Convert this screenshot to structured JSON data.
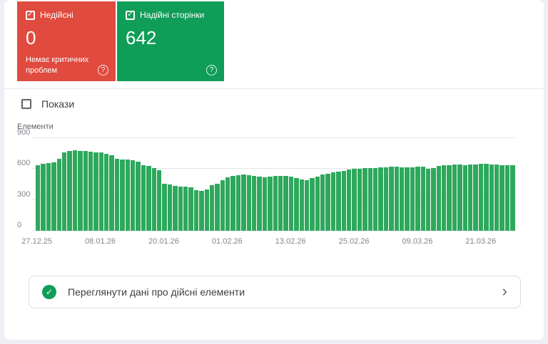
{
  "colors": {
    "invalid_card_bg": "#e04a3f",
    "valid_card_bg": "#0f9d58",
    "bar_green": "#2ea85c",
    "footer_check_green": "#109d58"
  },
  "icons": {
    "check": "✓",
    "help": "?",
    "chevron_right": "›"
  },
  "cards": {
    "invalid": {
      "label": "Недійсні",
      "value": "0",
      "subtext": "Немає критичних проблем",
      "checked": true
    },
    "valid": {
      "label": "Надійні сторінки",
      "value": "642",
      "checked": true
    }
  },
  "impressions_toggle": {
    "label": "Покази",
    "checked": false
  },
  "chart_data": {
    "type": "bar",
    "title": "",
    "ylabel": "Елементи",
    "xlabel": "",
    "ylim": [
      0,
      900
    ],
    "yticks": [
      0,
      300,
      600,
      900
    ],
    "grid": "horizontal",
    "bar_color": "#2ea85c",
    "x_tick_labels": [
      "27.12.25",
      "08.01.26",
      "20.01.26",
      "01.02.26",
      "13.02.26",
      "25.02.26",
      "09.03.26",
      "21.03.26"
    ],
    "x_tick_indices": [
      0,
      12,
      24,
      36,
      48,
      60,
      72,
      84
    ],
    "values": [
      640,
      650,
      655,
      665,
      700,
      760,
      775,
      780,
      775,
      775,
      770,
      765,
      760,
      750,
      735,
      700,
      690,
      695,
      685,
      670,
      640,
      630,
      610,
      590,
      460,
      450,
      435,
      430,
      430,
      425,
      395,
      385,
      400,
      440,
      460,
      490,
      520,
      535,
      540,
      545,
      540,
      530,
      525,
      520,
      525,
      530,
      530,
      530,
      525,
      515,
      500,
      495,
      510,
      525,
      545,
      555,
      565,
      575,
      585,
      595,
      600,
      605,
      610,
      610,
      610,
      615,
      615,
      620,
      620,
      615,
      615,
      618,
      620,
      620,
      600,
      610,
      630,
      640,
      640,
      645,
      645,
      640,
      642,
      645,
      648,
      650,
      645,
      645,
      640,
      635,
      640
    ]
  },
  "footer_link": {
    "label": "Переглянути дані про дійсні елементи"
  }
}
